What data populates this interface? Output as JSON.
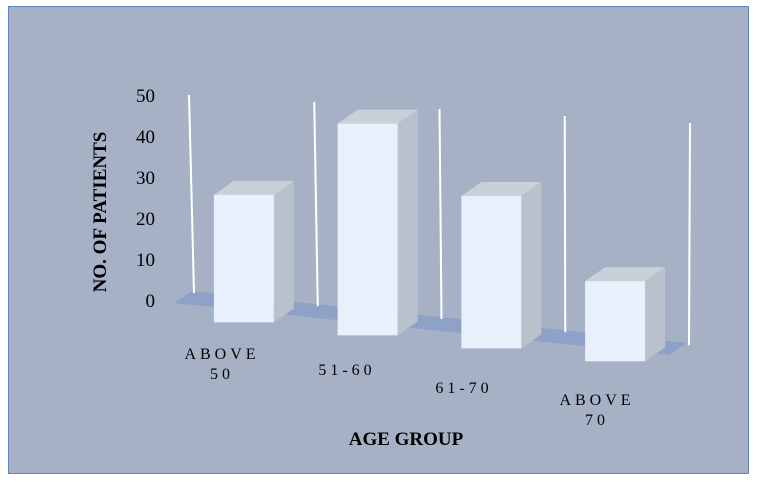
{
  "chart_data": {
    "type": "bar",
    "categories": [
      "ABOVE 50",
      "51-60",
      "61-70",
      "ABOVE 70"
    ],
    "category_label_lines": [
      [
        "ABOVE",
        "50"
      ],
      [
        "51-60"
      ],
      [
        "61-70"
      ],
      [
        "ABOVE",
        "70"
      ]
    ],
    "values": [
      30,
      47,
      32,
      16
    ],
    "xlabel": "AGE GROUP",
    "ylabel": "NO. OF PATIENTS",
    "ylim": [
      0,
      50
    ],
    "yticks": [
      "0",
      "10",
      "20",
      "30",
      "40",
      "50"
    ],
    "style": "3d-column",
    "grid": true
  },
  "colors": {
    "background": "#a6b1c6",
    "floor": "#8ea2c8",
    "bar_front": "#e8f0fb",
    "bar_top": "#c9d0d8",
    "bar_side": "#b9c1cc",
    "gridline": "#ffffff"
  }
}
